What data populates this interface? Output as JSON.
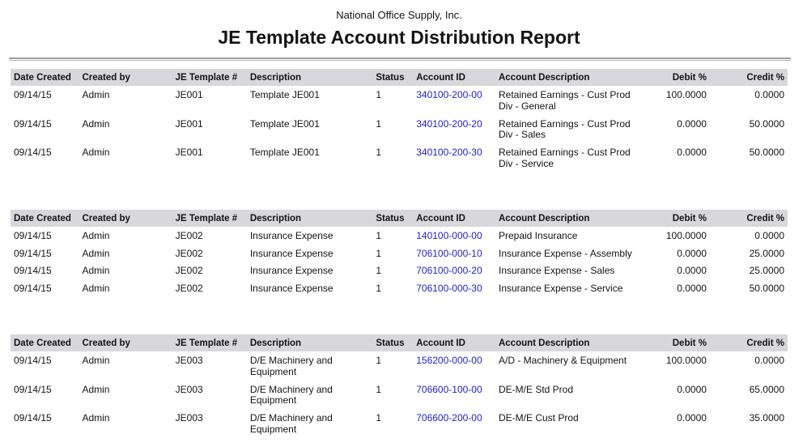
{
  "header": {
    "company": "National Office Supply, Inc.",
    "title": "JE Template Account Distribution Report"
  },
  "colors": {
    "link": "#2222cc",
    "header_bg": "#d8d8dc",
    "rule": "#9e9e9e"
  },
  "columns": [
    {
      "key": "date-created",
      "label": "Date Created"
    },
    {
      "key": "created-by",
      "label": "Created by"
    },
    {
      "key": "je-template",
      "label": "JE Template #"
    },
    {
      "key": "description",
      "label": "Description"
    },
    {
      "key": "status",
      "label": "Status"
    },
    {
      "key": "account-id",
      "label": "Account ID"
    },
    {
      "key": "account-description",
      "label": "Account Description"
    },
    {
      "key": "debit-pct",
      "label": "Debit %"
    },
    {
      "key": "credit-pct",
      "label": "Credit %"
    }
  ],
  "sections": [
    {
      "rows": [
        [
          "09/14/15",
          "Admin",
          "JE001",
          "Template JE001",
          "1",
          "340100-200-00",
          "Retained Earnings - Cust Prod Div - General",
          "100.0000",
          "0.0000"
        ],
        [
          "09/14/15",
          "Admin",
          "JE001",
          "Template JE001",
          "1",
          "340100-200-20",
          "Retained Earnings - Cust Prod Div - Sales",
          "0.0000",
          "50.0000"
        ],
        [
          "09/14/15",
          "Admin",
          "JE001",
          "Template JE001",
          "1",
          "340100-200-30",
          "Retained Earnings - Cust Prod Div - Service",
          "0.0000",
          "50.0000"
        ]
      ]
    },
    {
      "rows": [
        [
          "09/14/15",
          "Admin",
          "JE002",
          "Insurance Expense",
          "1",
          "140100-000-00",
          "Prepaid Insurance",
          "100.0000",
          "0.0000"
        ],
        [
          "09/14/15",
          "Admin",
          "JE002",
          "Insurance Expense",
          "1",
          "706100-000-10",
          "Insurance Expense - Assembly",
          "0.0000",
          "25.0000"
        ],
        [
          "09/14/15",
          "Admin",
          "JE002",
          "Insurance Expense",
          "1",
          "706100-000-20",
          "Insurance Expense - Sales",
          "0.0000",
          "25.0000"
        ],
        [
          "09/14/15",
          "Admin",
          "JE002",
          "Insurance Expense",
          "1",
          "706100-000-30",
          "Insurance Expense - Service",
          "0.0000",
          "50.0000"
        ]
      ]
    },
    {
      "rows": [
        [
          "09/14/15",
          "Admin",
          "JE003",
          "D/E Machinery and Equipment",
          "1",
          "156200-000-00",
          "A/D - Machinery & Equipment",
          "100.0000",
          "0.0000"
        ],
        [
          "09/14/15",
          "Admin",
          "JE003",
          "D/E Machinery and Equipment",
          "1",
          "706600-100-00",
          "DE-M/E Std Prod",
          "0.0000",
          "65.0000"
        ],
        [
          "09/14/15",
          "Admin",
          "JE003",
          "D/E Machinery and Equipment",
          "1",
          "706600-200-00",
          "DE-M/E Cust Prod",
          "0.0000",
          "35.0000"
        ]
      ]
    }
  ]
}
